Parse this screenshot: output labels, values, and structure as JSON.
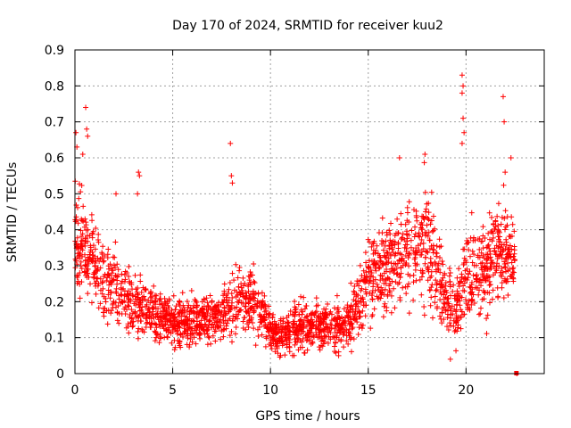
{
  "chart_data": {
    "type": "scatter",
    "title": "Day 170 of 2024, SRMTID for receiver kuu2",
    "xlabel": "GPS time / hours",
    "ylabel": "SRMTID / TECUs",
    "xlim": [
      0,
      24
    ],
    "ylim": [
      0,
      0.9
    ],
    "xticks": [
      0,
      5,
      10,
      15,
      20
    ],
    "xtick_labels": [
      "0",
      "5",
      "10",
      "15",
      "20"
    ],
    "yticks": [
      0,
      0.1,
      0.2,
      0.3,
      0.4,
      0.5,
      0.6,
      0.7,
      0.8,
      0.9
    ],
    "ytick_labels": [
      "0",
      "0.1",
      "0.2",
      "0.3",
      "0.4",
      "0.5",
      "0.6",
      "0.7",
      "0.8",
      "0.9"
    ],
    "grid": true,
    "marker": "plus",
    "color": "#ff0000",
    "envelope_x": [
      0,
      0.5,
      1,
      1.5,
      2,
      2.5,
      3,
      3.5,
      4,
      4.5,
      5,
      5.5,
      6,
      6.5,
      7,
      7.5,
      8,
      8.5,
      9,
      9.5,
      10,
      10.5,
      11,
      11.5,
      12,
      12.5,
      13,
      13.5,
      14,
      14.5,
      15,
      15.5,
      16,
      16.5,
      17,
      17.5,
      18,
      18.5,
      19,
      19.5,
      20,
      20.5,
      21,
      21.5,
      22,
      22.5
    ],
    "envelope_y": [
      0.38,
      0.34,
      0.3,
      0.26,
      0.24,
      0.22,
      0.2,
      0.18,
      0.17,
      0.16,
      0.15,
      0.14,
      0.14,
      0.15,
      0.15,
      0.16,
      0.19,
      0.21,
      0.2,
      0.18,
      0.12,
      0.1,
      0.12,
      0.13,
      0.13,
      0.13,
      0.13,
      0.13,
      0.15,
      0.2,
      0.27,
      0.28,
      0.3,
      0.33,
      0.35,
      0.36,
      0.37,
      0.28,
      0.2,
      0.18,
      0.28,
      0.26,
      0.3,
      0.33,
      0.34,
      0.32
    ],
    "scatter_spread": [
      0.12,
      0.1,
      0.09,
      0.08,
      0.08,
      0.07,
      0.07,
      0.06,
      0.06,
      0.05,
      0.05,
      0.05,
      0.05,
      0.05,
      0.05,
      0.05,
      0.07,
      0.07,
      0.06,
      0.05,
      0.04,
      0.04,
      0.05,
      0.05,
      0.05,
      0.05,
      0.05,
      0.05,
      0.05,
      0.07,
      0.08,
      0.09,
      0.1,
      0.11,
      0.12,
      0.12,
      0.12,
      0.09,
      0.07,
      0.07,
      0.1,
      0.09,
      0.1,
      0.1,
      0.1,
      0.08
    ],
    "outliers": [
      {
        "x": 0.05,
        "y": 0.67
      },
      {
        "x": 0.1,
        "y": 0.63
      },
      {
        "x": 0.4,
        "y": 0.61
      },
      {
        "x": 0.55,
        "y": 0.74
      },
      {
        "x": 0.6,
        "y": 0.68
      },
      {
        "x": 0.65,
        "y": 0.66
      },
      {
        "x": 3.25,
        "y": 0.56
      },
      {
        "x": 3.3,
        "y": 0.55
      },
      {
        "x": 3.2,
        "y": 0.5
      },
      {
        "x": 2.1,
        "y": 0.5
      },
      {
        "x": 7.95,
        "y": 0.64
      },
      {
        "x": 8.0,
        "y": 0.55
      },
      {
        "x": 8.05,
        "y": 0.53
      },
      {
        "x": 17.9,
        "y": 0.61
      },
      {
        "x": 16.6,
        "y": 0.6
      },
      {
        "x": 19.8,
        "y": 0.83
      },
      {
        "x": 19.85,
        "y": 0.8
      },
      {
        "x": 19.8,
        "y": 0.78
      },
      {
        "x": 19.85,
        "y": 0.71
      },
      {
        "x": 19.9,
        "y": 0.67
      },
      {
        "x": 19.8,
        "y": 0.64
      },
      {
        "x": 21.9,
        "y": 0.77
      },
      {
        "x": 21.95,
        "y": 0.7
      },
      {
        "x": 22.0,
        "y": 0.56
      },
      {
        "x": 22.3,
        "y": 0.6
      },
      {
        "x": 19.2,
        "y": 0.04
      },
      {
        "x": 22.6,
        "y": 0.0
      }
    ]
  }
}
